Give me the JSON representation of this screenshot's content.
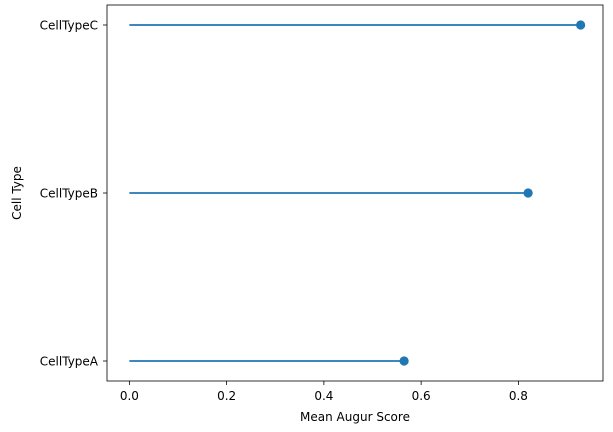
{
  "chart_data": {
    "type": "lollipop",
    "title": "",
    "xlabel": "Mean Augur Score",
    "ylabel": "Cell Type",
    "categories": [
      "CellTypeA",
      "CellTypeB",
      "CellTypeC"
    ],
    "values": [
      0.565,
      0.82,
      0.928
    ],
    "baseline": 0,
    "xlim": [
      -0.046,
      0.974
    ],
    "xticks": [
      0.0,
      0.2,
      0.4,
      0.6,
      0.8
    ],
    "xtick_labels": [
      "0.0",
      "0.2",
      "0.4",
      "0.6",
      "0.8"
    ],
    "grid": false,
    "legend": "none",
    "colors": {
      "series": "#1f77b4",
      "axes": "#000000",
      "background": "#ffffff"
    }
  }
}
